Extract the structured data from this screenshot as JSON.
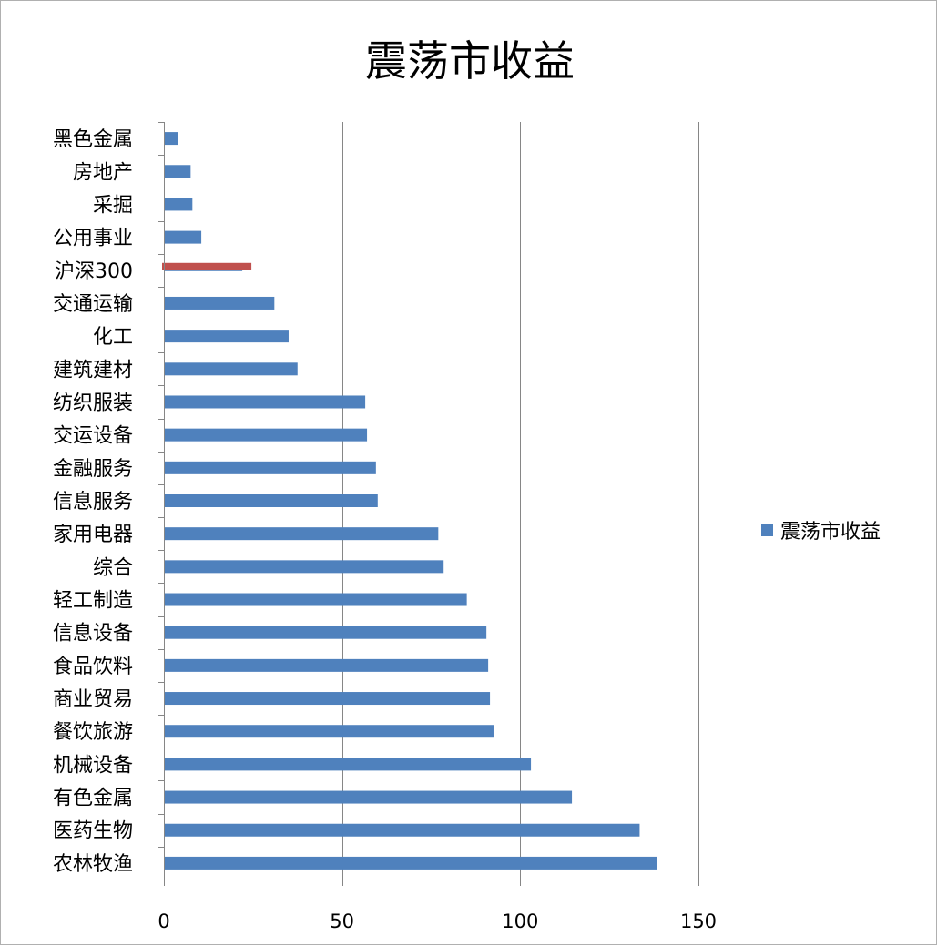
{
  "chart_data": {
    "type": "bar",
    "orientation": "horizontal",
    "title": "震荡市收益",
    "xlabel": "",
    "ylabel": "",
    "xlim": [
      0,
      150
    ],
    "xticks": [
      0,
      50,
      100,
      150
    ],
    "xtick_labels": [
      "0",
      "50",
      "100",
      "150"
    ],
    "grid": true,
    "legend_position": "right",
    "categories": [
      "黑色金属",
      "房地产",
      "采掘",
      "公用事业",
      "沪深300",
      "交通运输",
      "化工",
      "建筑建材",
      "纺织服装",
      "交运设备",
      "金融服务",
      "信息服务",
      "家用电器",
      "综合",
      "轻工制造",
      "信息设备",
      "食品饮料",
      "商业贸易",
      "餐饮旅游",
      "机械设备",
      "有色金属",
      "医药生物",
      "农林牧渔"
    ],
    "series": [
      {
        "name": "震荡市收益",
        "color": "#4f81bd",
        "values": [
          4,
          7.5,
          8,
          10.5,
          22,
          31,
          35,
          37.5,
          56.5,
          57,
          59.5,
          60,
          77,
          78.5,
          85,
          90.5,
          91,
          91.5,
          92.5,
          103,
          114.5,
          133.5,
          138.5
        ]
      }
    ],
    "highlight": {
      "category": "沪深300",
      "color": "#c0504d"
    }
  }
}
